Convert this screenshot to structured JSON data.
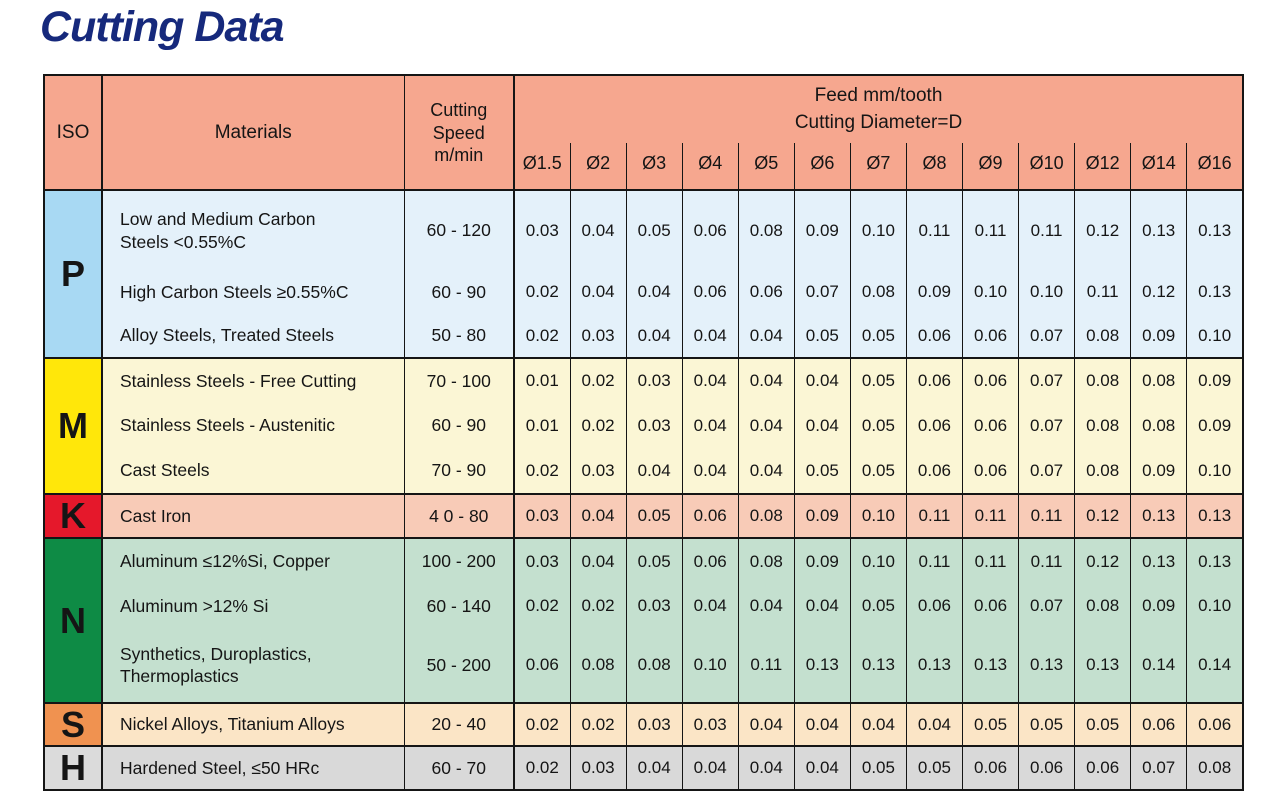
{
  "title": "Cutting Data",
  "table": {
    "headers": {
      "iso": "ISO",
      "materials": "Materials",
      "cutting_speed": "Cutting Speed m/min",
      "feed_title_line1": "Feed mm/tooth",
      "feed_title_line2": "Cutting Diameter=D",
      "diameters": [
        "Ø1.5",
        "Ø2",
        "Ø3",
        "Ø4",
        "Ø5",
        "Ø6",
        "Ø7",
        "Ø8",
        "Ø9",
        "Ø10",
        "Ø12",
        "Ø14",
        "Ø16"
      ]
    },
    "colors": {
      "header_bg": "#F6A78F",
      "border": "#151515",
      "title": "#16297C"
    },
    "sections": [
      {
        "iso": "P",
        "iso_color": "#A8D9F3",
        "row_color": "#E4F1FA",
        "rows": [
          {
            "material": "Low and Medium Carbon Steels <0.55%C",
            "speed": "60 - 120",
            "feeds": [
              "0.03",
              "0.04",
              "0.05",
              "0.06",
              "0.08",
              "0.09",
              "0.10",
              "0.11",
              "0.11",
              "0.11",
              "0.12",
              "0.13",
              "0.13"
            ]
          },
          {
            "material": "High Carbon Steels ≥0.55%C",
            "speed": "60 - 90",
            "feeds": [
              "0.02",
              "0.04",
              "0.04",
              "0.06",
              "0.06",
              "0.07",
              "0.08",
              "0.09",
              "0.10",
              "0.10",
              "0.11",
              "0.12",
              "0.13"
            ]
          },
          {
            "material": "Alloy Steels, Treated Steels",
            "speed": "50 - 80",
            "feeds": [
              "0.02",
              "0.03",
              "0.04",
              "0.04",
              "0.04",
              "0.05",
              "0.05",
              "0.06",
              "0.06",
              "0.07",
              "0.08",
              "0.09",
              "0.10"
            ]
          }
        ]
      },
      {
        "iso": "M",
        "iso_color": "#FFE70A",
        "row_color": "#FBF6D5",
        "rows": [
          {
            "material": "Stainless Steels - Free Cutting",
            "speed": "70 - 100",
            "feeds": [
              "0.01",
              "0.02",
              "0.03",
              "0.04",
              "0.04",
              "0.04",
              "0.05",
              "0.06",
              "0.06",
              "0.07",
              "0.08",
              "0.08",
              "0.09"
            ]
          },
          {
            "material": "Stainless Steels - Austenitic",
            "speed": "60 - 90",
            "feeds": [
              "0.01",
              "0.02",
              "0.03",
              "0.04",
              "0.04",
              "0.04",
              "0.05",
              "0.06",
              "0.06",
              "0.07",
              "0.08",
              "0.08",
              "0.09"
            ]
          },
          {
            "material": "Cast Steels",
            "speed": "70 - 90",
            "feeds": [
              "0.02",
              "0.03",
              "0.04",
              "0.04",
              "0.04",
              "0.05",
              "0.05",
              "0.06",
              "0.06",
              "0.07",
              "0.08",
              "0.09",
              "0.10"
            ]
          }
        ]
      },
      {
        "iso": "K",
        "iso_color": "#E5182B",
        "row_color": "#F8CBB7",
        "rows": [
          {
            "material": "Cast Iron",
            "speed": "4 0 - 80",
            "feeds": [
              "0.03",
              "0.04",
              "0.05",
              "0.06",
              "0.08",
              "0.09",
              "0.10",
              "0.11",
              "0.11",
              "0.11",
              "0.12",
              "0.13",
              "0.13"
            ]
          }
        ]
      },
      {
        "iso": "N",
        "iso_color": "#0E8B45",
        "row_color": "#C4E0CF",
        "rows": [
          {
            "material": "Aluminum ≤12%Si, Copper",
            "speed": "100 - 200",
            "feeds": [
              "0.03",
              "0.04",
              "0.05",
              "0.06",
              "0.08",
              "0.09",
              "0.10",
              "0.11",
              "0.11",
              "0.11",
              "0.12",
              "0.13",
              "0.13"
            ]
          },
          {
            "material": "Aluminum >12% Si",
            "speed": "60 - 140",
            "feeds": [
              "0.02",
              "0.02",
              "0.03",
              "0.04",
              "0.04",
              "0.04",
              "0.05",
              "0.06",
              "0.06",
              "0.07",
              "0.08",
              "0.09",
              "0.10"
            ]
          },
          {
            "material": "Synthetics, Duroplastics, Thermoplastics",
            "speed": "50 - 200",
            "feeds": [
              "0.06",
              "0.08",
              "0.08",
              "0.10",
              "0.11",
              "0.13",
              "0.13",
              "0.13",
              "0.13",
              "0.13",
              "0.13",
              "0.14",
              "0.14"
            ]
          }
        ]
      },
      {
        "iso": "S",
        "iso_color": "#F09250",
        "row_color": "#FBE5C6",
        "rows": [
          {
            "material": "Nickel Alloys, Titanium Alloys",
            "speed": "20 - 40",
            "feeds": [
              "0.02",
              "0.02",
              "0.03",
              "0.03",
              "0.04",
              "0.04",
              "0.04",
              "0.04",
              "0.05",
              "0.05",
              "0.05",
              "0.06",
              "0.06"
            ]
          }
        ]
      },
      {
        "iso": "H",
        "iso_color": "#DBDBDB",
        "row_color": "#D9D9D9",
        "rows": [
          {
            "material": "Hardened Steel, ≤50 HRc",
            "speed": "60 - 70",
            "feeds": [
              "0.02",
              "0.03",
              "0.04",
              "0.04",
              "0.04",
              "0.04",
              "0.05",
              "0.05",
              "0.06",
              "0.06",
              "0.06",
              "0.07",
              "0.08"
            ]
          }
        ]
      }
    ]
  }
}
